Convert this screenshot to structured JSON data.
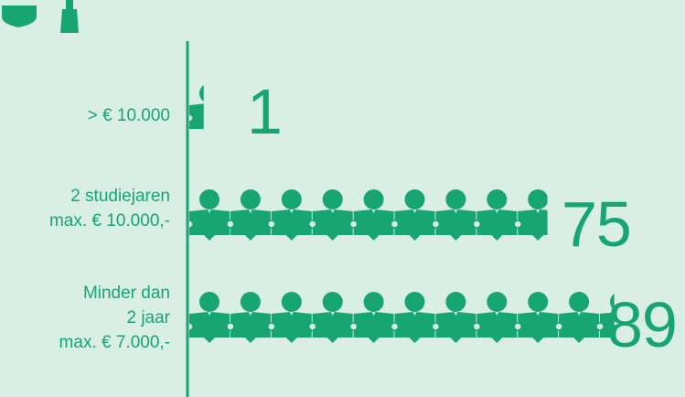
{
  "colors": {
    "background": "#d9efe6",
    "accent": "#17a673"
  },
  "header": {
    "icon": "graduation-cap-icon"
  },
  "chart_data": {
    "type": "bar",
    "unit_icon": "person-reading-icon",
    "categories": [
      [
        "> € 10.000"
      ],
      [
        "2 studiejaren",
        "max. € 10.000,-"
      ],
      [
        "Minder dan",
        "2 jaar",
        "max. € 7.000,-"
      ]
    ],
    "values": [
      1,
      75,
      89
    ],
    "value_labels": [
      "1",
      "75",
      "89"
    ],
    "title": "",
    "xlabel": "",
    "ylabel": ""
  }
}
